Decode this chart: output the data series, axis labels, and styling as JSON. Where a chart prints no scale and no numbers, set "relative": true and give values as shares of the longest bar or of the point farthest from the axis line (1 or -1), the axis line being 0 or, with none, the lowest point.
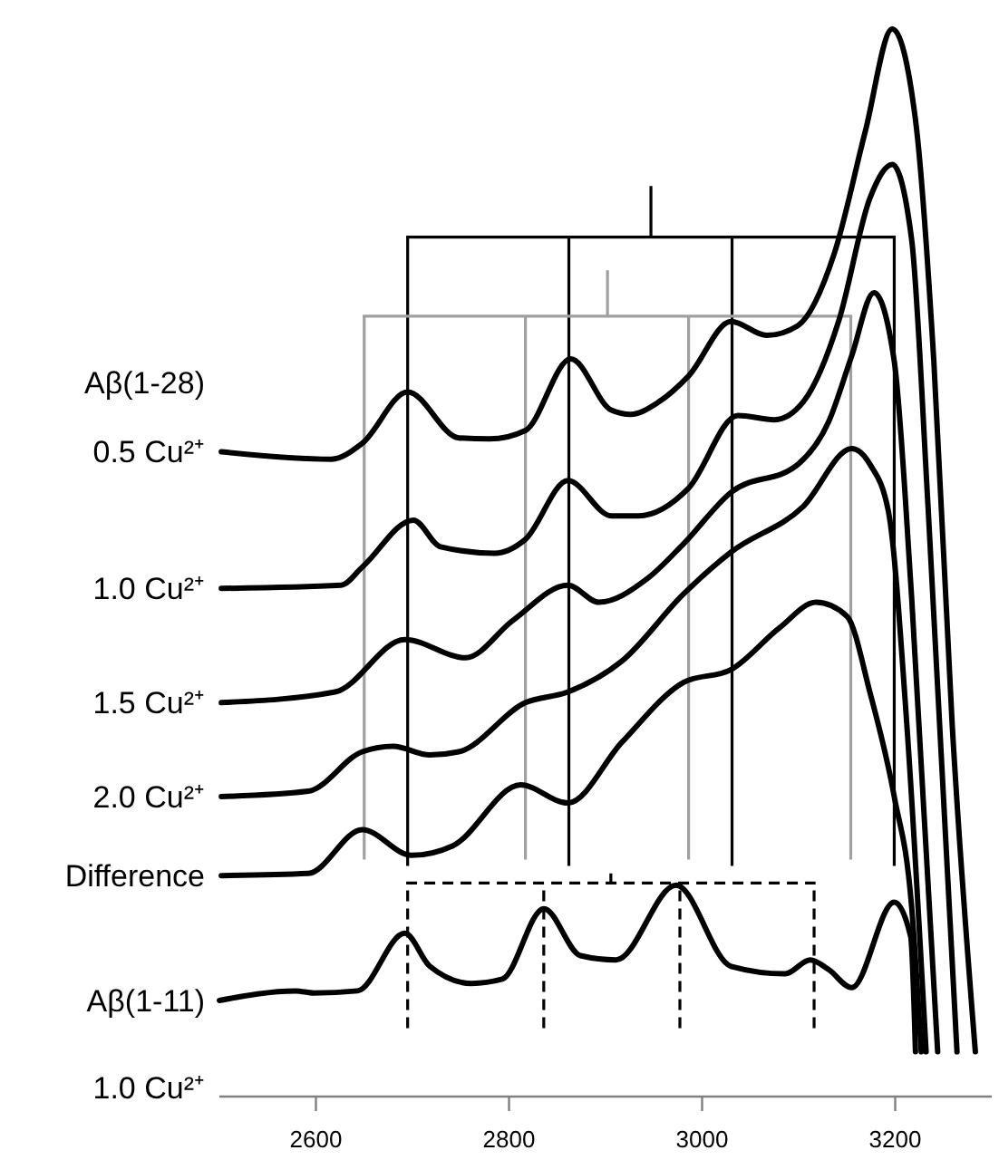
{
  "chart_data": {
    "type": "line",
    "relative": true,
    "xlim": [
      2500,
      3300
    ],
    "xticks": [
      2600,
      2800,
      3000,
      3200
    ],
    "line_style": "solid",
    "annotations": [
      "Aβ(1-28)",
      "1.0 Cu²⁺"
    ],
    "ref_lines": [
      {
        "axis": "x",
        "value": 2695,
        "color": "#000000",
        "line_style": "solid"
      },
      {
        "axis": "x",
        "value": 2862,
        "color": "#000000",
        "line_style": "solid"
      },
      {
        "axis": "x",
        "value": 3031,
        "color": "#000000",
        "line_style": "solid"
      },
      {
        "axis": "x",
        "value": 3199,
        "color": "#000000",
        "line_style": "solid"
      },
      {
        "axis": "x",
        "value": 2650,
        "color": "#a0a0a0",
        "line_style": "solid"
      },
      {
        "axis": "x",
        "value": 2817,
        "color": "#a0a0a0",
        "line_style": "solid"
      },
      {
        "axis": "x",
        "value": 2986,
        "color": "#a0a0a0",
        "line_style": "solid"
      },
      {
        "axis": "x",
        "value": 3154,
        "color": "#a0a0a0",
        "line_style": "solid"
      },
      {
        "axis": "x",
        "value": 2695,
        "color": "#000000",
        "line_style": "dashed"
      },
      {
        "axis": "x",
        "value": 2836,
        "color": "#000000",
        "line_style": "dashed"
      },
      {
        "axis": "x",
        "value": 2977,
        "color": "#000000",
        "line_style": "dashed"
      },
      {
        "axis": "x",
        "value": 3116,
        "color": "#000000",
        "line_style": "dashed"
      }
    ],
    "series": [
      {
        "name": "0.5 Cu²⁺",
        "color": "#000000",
        "x": [
          2502,
          2616,
          2648,
          2695,
          2748,
          2780,
          2817,
          2864,
          2906,
          2926,
          2954,
          2986,
          3030,
          3067,
          3099,
          3137,
          3169,
          3197,
          3221,
          3240,
          3259,
          3283
        ],
        "values": [
          0.604,
          0.597,
          0.612,
          0.66,
          0.617,
          0.616,
          0.624,
          0.691,
          0.643,
          0.639,
          0.65,
          0.675,
          0.726,
          0.713,
          0.722,
          0.79,
          0.904,
          1,
          0.915,
          0.689,
          0.349,
          0.042
        ]
      },
      {
        "name": "1.0 Cu²⁺",
        "color": "#000000",
        "x": [
          2502,
          2626,
          2648,
          2701,
          2729,
          2785,
          2817,
          2861,
          2906,
          2934,
          2986,
          3037,
          3075,
          3105,
          3142,
          3174,
          3197,
          3217,
          3234,
          3264
        ],
        "values": [
          0.476,
          0.479,
          0.496,
          0.54,
          0.515,
          0.509,
          0.522,
          0.577,
          0.544,
          0.544,
          0.57,
          0.638,
          0.634,
          0.651,
          0.728,
          0.842,
          0.873,
          0.803,
          0.553,
          0.042
        ]
      },
      {
        "name": "1.5 Cu²⁺",
        "color": "#000000",
        "x": [
          2502,
          2620,
          2692,
          2755,
          2804,
          2861,
          2893,
          2943,
          2981,
          3030,
          3099,
          3131,
          3155,
          3178,
          3199,
          3217,
          3244
        ],
        "values": [
          0.369,
          0.379,
          0.428,
          0.411,
          0.446,
          0.479,
          0.463,
          0.485,
          0.518,
          0.566,
          0.592,
          0.632,
          0.694,
          0.753,
          0.689,
          0.468,
          0.042
        ]
      },
      {
        "name": "2.0 Cu²⁺",
        "color": "#000000",
        "x": [
          2502,
          2592,
          2648,
          2680,
          2718,
          2748,
          2817,
          2861,
          2917,
          2981,
          3030,
          3105,
          3155,
          3174,
          3193,
          3212,
          3232
        ],
        "values": [
          0.281,
          0.286,
          0.323,
          0.328,
          0.32,
          0.323,
          0.369,
          0.379,
          0.408,
          0.471,
          0.51,
          0.553,
          0.607,
          0.592,
          0.548,
          0.349,
          0.042
        ]
      },
      {
        "name": "Difference",
        "color": "#000000",
        "x": [
          2502,
          2592,
          2648,
          2699,
          2742,
          2812,
          2861,
          2917,
          2981,
          3030,
          3080,
          3118,
          3150,
          3174,
          3199,
          3217,
          3227
        ],
        "values": [
          0.207,
          0.209,
          0.25,
          0.226,
          0.235,
          0.292,
          0.275,
          0.332,
          0.388,
          0.4,
          0.439,
          0.463,
          0.45,
          0.378,
          0.281,
          0.178,
          0.042
        ]
      },
      {
        "name": "Aβ(1-11)",
        "color": "#000000",
        "x": [
          2500,
          2579,
          2598,
          2643,
          2692,
          2718,
          2761,
          2793,
          2836,
          2874,
          2911,
          2973,
          3030,
          3086,
          3112,
          3131,
          3155,
          3199,
          3216,
          3221
        ],
        "values": [
          0.09,
          0.099,
          0.097,
          0.099,
          0.153,
          0.122,
          0.106,
          0.11,
          0.176,
          0.132,
          0.128,
          0.198,
          0.122,
          0.115,
          0.128,
          0.119,
          0.102,
          0.182,
          0.15,
          0.042
        ]
      }
    ]
  }
}
